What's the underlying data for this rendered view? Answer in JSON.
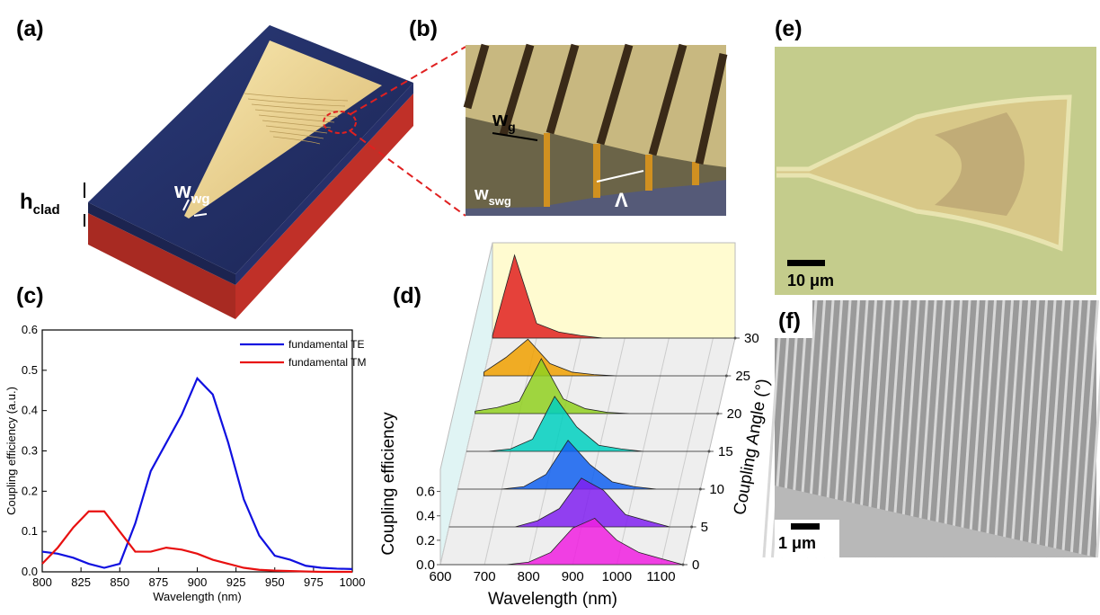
{
  "panels": {
    "a": {
      "label": "(a)",
      "h_clad": {
        "base": "h",
        "sub": "clad"
      },
      "w_wg": {
        "base": "w",
        "sub": "wg"
      }
    },
    "b": {
      "label": "(b)",
      "w_g": {
        "base": "w",
        "sub": "g"
      },
      "w_swg": {
        "base": "w",
        "sub": "swg"
      },
      "period": "Λ"
    },
    "c": {
      "label": "(c)"
    },
    "d": {
      "label": "(d)"
    },
    "e": {
      "label": "(e)",
      "scale_bar": "10 μm"
    },
    "f": {
      "label": "(f)",
      "scale_bar": "1 μm"
    }
  },
  "chart_data": [
    {
      "type": "line",
      "x_label": "Wavelength (nm)",
      "y_label": "Coupling efficiency (a.u.)",
      "x": [
        800,
        810,
        820,
        830,
        840,
        850,
        860,
        870,
        880,
        890,
        900,
        910,
        920,
        930,
        940,
        950,
        960,
        970,
        980,
        990,
        1000
      ],
      "series": [
        {
          "name": "fundamental TE",
          "color": "#1010e0",
          "values": [
            0.05,
            0.045,
            0.035,
            0.02,
            0.01,
            0.02,
            0.12,
            0.25,
            0.32,
            0.39,
            0.48,
            0.44,
            0.32,
            0.18,
            0.09,
            0.04,
            0.03,
            0.015,
            0.01,
            0.008,
            0.007
          ]
        },
        {
          "name": "fundamental TM",
          "color": "#e81010",
          "values": [
            0.02,
            0.06,
            0.11,
            0.15,
            0.15,
            0.1,
            0.05,
            0.05,
            0.06,
            0.055,
            0.045,
            0.03,
            0.02,
            0.01,
            0.005,
            0.003,
            0.002,
            0.001,
            0,
            0,
            0
          ]
        }
      ],
      "xlim": [
        800,
        1000
      ],
      "xticks": [
        800,
        825,
        850,
        875,
        900,
        925,
        950,
        975,
        1000
      ],
      "ylim": [
        0,
        0.6
      ],
      "yticks": [
        {
          "value": 0,
          "label": "0.0"
        },
        0.1,
        0.2,
        0.3,
        0.4,
        0.5,
        0.6
      ],
      "legend": "upper right"
    },
    {
      "type": "waterfall",
      "x_label": "Wavelength (nm)",
      "y_label": "Coupling efficiency",
      "z_label": "Coupling Angle (°)",
      "x": [
        600,
        650,
        700,
        750,
        800,
        850,
        900,
        950,
        1000,
        1050,
        1100,
        1150
      ],
      "series": [
        {
          "angle": 30,
          "color": "#e02020",
          "values": [
            0.02,
            0.68,
            0.12,
            0.05,
            0.02,
            0,
            0,
            0,
            0,
            0,
            0,
            0
          ]
        },
        {
          "angle": 25,
          "color": "#f0a000",
          "values": [
            0.03,
            0.15,
            0.3,
            0.1,
            0.03,
            0.01,
            0,
            0,
            0,
            0,
            0,
            0
          ]
        },
        {
          "angle": 20,
          "color": "#90d020",
          "values": [
            0.02,
            0.05,
            0.1,
            0.45,
            0.12,
            0.04,
            0.01,
            0,
            0,
            0,
            0,
            0
          ]
        },
        {
          "angle": 15,
          "color": "#00d0c0",
          "values": [
            0,
            0,
            0.02,
            0.1,
            0.45,
            0.2,
            0.05,
            0.02,
            0,
            0,
            0,
            0
          ]
        },
        {
          "angle": 10,
          "color": "#1060f0",
          "values": [
            0,
            0,
            0,
            0.02,
            0.12,
            0.4,
            0.2,
            0.06,
            0.02,
            0,
            0,
            0
          ]
        },
        {
          "angle": 5,
          "color": "#8020f0",
          "values": [
            0,
            0,
            0,
            0,
            0.05,
            0.15,
            0.4,
            0.3,
            0.1,
            0.05,
            0,
            0
          ]
        },
        {
          "angle": 0,
          "color": "#f020e0",
          "values": [
            0,
            0,
            0,
            0,
            0.02,
            0.1,
            0.3,
            0.38,
            0.2,
            0.1,
            0.05,
            0
          ]
        }
      ],
      "xlim": [
        600,
        1150
      ],
      "xticks": [
        600,
        700,
        800,
        900,
        1000,
        1100
      ],
      "ylim": [
        0,
        0.7
      ],
      "yticks": [
        {
          "value": 0,
          "label": "0.0"
        },
        0.2,
        0.4,
        0.6
      ],
      "zlim": [
        0,
        30
      ],
      "zticks": [
        0,
        5,
        10,
        15,
        20,
        25,
        30
      ]
    }
  ]
}
